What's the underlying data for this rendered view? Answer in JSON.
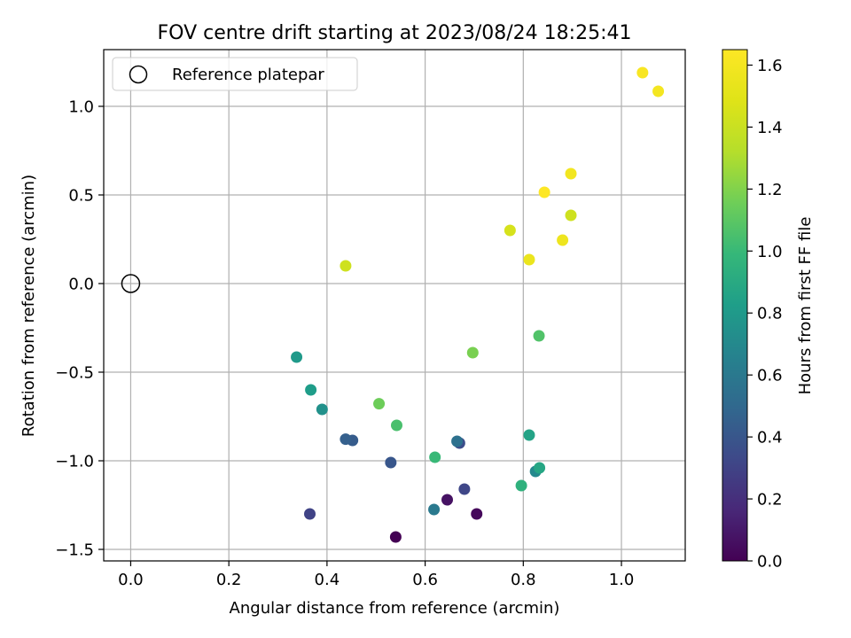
{
  "chart_data": {
    "type": "scatter",
    "title": "FOV centre drift starting at 2023/08/24 18:25:41",
    "xlabel": "Angular distance from reference (arcmin)",
    "ylabel": "Rotation from reference (arcmin)",
    "xlim": [
      -0.055,
      1.13
    ],
    "ylim": [
      -1.565,
      1.32
    ],
    "xticks": [
      0.0,
      0.2,
      0.4,
      0.6,
      0.8,
      1.0
    ],
    "xtick_labels": [
      "0.0",
      "0.2",
      "0.4",
      "0.6",
      "0.8",
      "1.0"
    ],
    "yticks": [
      -1.5,
      -1.0,
      -0.5,
      0.0,
      0.5,
      1.0
    ],
    "ytick_labels": [
      "−1.5",
      "−1.0",
      "−0.5",
      "0.0",
      "0.5",
      "1.0"
    ],
    "grid": true,
    "legend": {
      "placement": "top-left",
      "entries": [
        "Reference platepar"
      ]
    },
    "reference_point": {
      "x": 0.0,
      "y": 0.0
    },
    "colorbar": {
      "label": "Hours from first FF file",
      "range": [
        0.0,
        1.65
      ],
      "ticks": [
        0.0,
        0.2,
        0.4,
        0.6,
        0.8,
        1.0,
        1.2,
        1.4,
        1.6
      ],
      "tick_labels": [
        "0.0",
        "0.2",
        "0.4",
        "0.6",
        "0.8",
        "1.0",
        "1.2",
        "1.4",
        "1.6"
      ],
      "colormap": "viridis"
    },
    "points": [
      {
        "x": 0.54,
        "y": -1.43,
        "h": 0.0
      },
      {
        "x": 0.705,
        "y": -1.3,
        "h": 0.03
      },
      {
        "x": 0.645,
        "y": -1.22,
        "h": 0.07
      },
      {
        "x": 0.365,
        "y": -1.3,
        "h": 0.3
      },
      {
        "x": 0.68,
        "y": -1.16,
        "h": 0.32
      },
      {
        "x": 0.67,
        "y": -0.9,
        "h": 0.35
      },
      {
        "x": 0.53,
        "y": -1.01,
        "h": 0.4
      },
      {
        "x": 0.452,
        "y": -0.885,
        "h": 0.43
      },
      {
        "x": 0.438,
        "y": -0.878,
        "h": 0.45
      },
      {
        "x": 0.665,
        "y": -0.89,
        "h": 0.55
      },
      {
        "x": 0.618,
        "y": -1.275,
        "h": 0.6
      },
      {
        "x": 0.825,
        "y": -1.06,
        "h": 0.7
      },
      {
        "x": 0.39,
        "y": -0.71,
        "h": 0.75
      },
      {
        "x": 0.338,
        "y": -0.415,
        "h": 0.8
      },
      {
        "x": 0.367,
        "y": -0.6,
        "h": 0.82
      },
      {
        "x": 0.812,
        "y": -0.855,
        "h": 0.86
      },
      {
        "x": 0.833,
        "y": -1.04,
        "h": 0.88
      },
      {
        "x": 0.796,
        "y": -1.14,
        "h": 0.95
      },
      {
        "x": 0.62,
        "y": -0.98,
        "h": 1.0
      },
      {
        "x": 0.542,
        "y": -0.8,
        "h": 1.05
      },
      {
        "x": 0.832,
        "y": -0.295,
        "h": 1.07
      },
      {
        "x": 0.506,
        "y": -0.678,
        "h": 1.15
      },
      {
        "x": 0.697,
        "y": -0.39,
        "h": 1.18
      },
      {
        "x": 0.438,
        "y": 0.1,
        "h": 1.42
      },
      {
        "x": 0.897,
        "y": 0.385,
        "h": 1.42
      },
      {
        "x": 0.773,
        "y": 0.3,
        "h": 1.45
      },
      {
        "x": 0.812,
        "y": 0.135,
        "h": 1.55
      },
      {
        "x": 0.88,
        "y": 0.245,
        "h": 1.57
      },
      {
        "x": 0.897,
        "y": 0.62,
        "h": 1.59
      },
      {
        "x": 1.075,
        "y": 1.085,
        "h": 1.6
      },
      {
        "x": 1.043,
        "y": 1.19,
        "h": 1.62
      },
      {
        "x": 0.843,
        "y": 0.515,
        "h": 1.65
      }
    ]
  }
}
